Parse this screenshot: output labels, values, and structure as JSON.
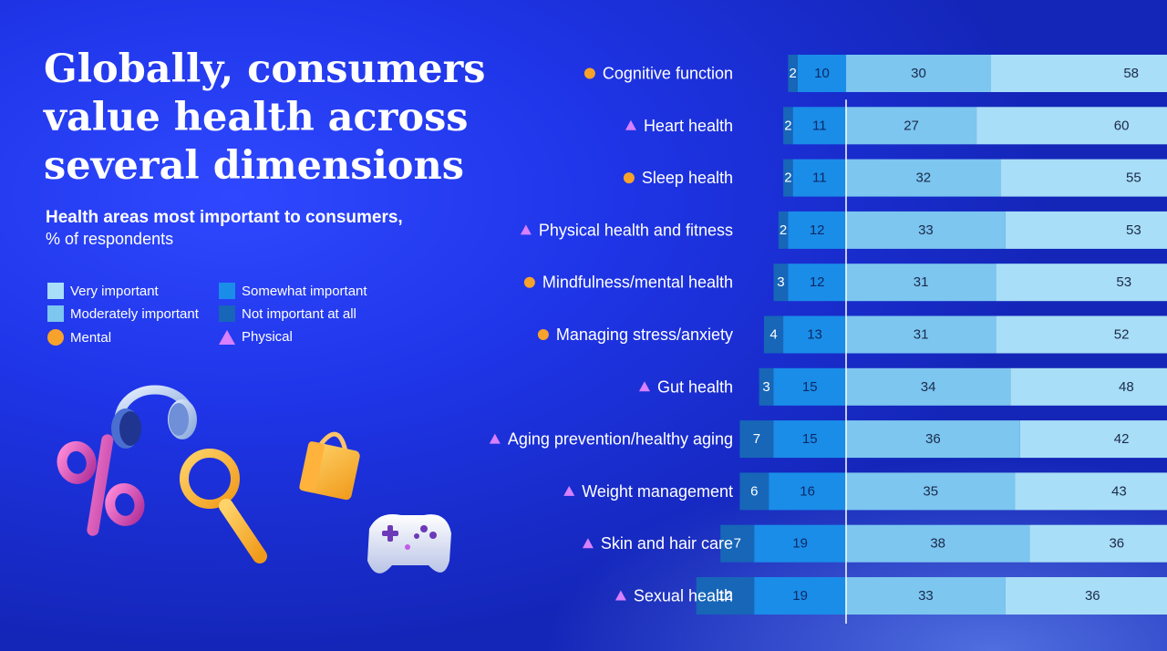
{
  "slide": {
    "title": "Globally, consumers value health across several dimensions",
    "subtitle": "Health areas most important to consumers,",
    "subtitle_unit": "% of respondents"
  },
  "legend": {
    "very": "Very important",
    "somewhat": "Somewhat important",
    "moderately": "Moderately important",
    "not_at_all": "Not important at all",
    "mental": "Mental",
    "physical": "Physical"
  },
  "colors": {
    "not_at_all": "#1766b8",
    "somewhat": "#1a8de8",
    "moderately": "#7cc6f0",
    "very": "#a8def7",
    "mental_marker": "#f7a22b",
    "physical_marker": "#d880ff"
  },
  "chart_data": {
    "type": "bar",
    "orientation": "horizontal-stacked-diverging",
    "title": "Health areas most important to consumers,",
    "unit": "% of respondents",
    "segments": [
      "Not important at all",
      "Somewhat important",
      "Moderately important",
      "Very important"
    ],
    "categories": [
      "Cognitive function",
      "Heart health",
      "Sleep health",
      "Physical health and fitness",
      "Mindfulness/mental health",
      "Managing stress/anxiety",
      "Gut health",
      "Aging prevention/healthy aging",
      "Weight management",
      "Skin and hair care",
      "Sexual health"
    ],
    "category_type": [
      "mental",
      "physical",
      "mental",
      "physical",
      "mental",
      "mental",
      "physical",
      "physical",
      "physical",
      "physical",
      "physical"
    ],
    "series": [
      {
        "name": "Not important at all",
        "values": [
          2,
          2,
          2,
          2,
          3,
          4,
          3,
          7,
          6,
          7,
          12
        ]
      },
      {
        "name": "Somewhat important",
        "values": [
          10,
          11,
          11,
          12,
          12,
          13,
          15,
          15,
          16,
          19,
          19
        ]
      },
      {
        "name": "Moderately important",
        "values": [
          30,
          27,
          32,
          33,
          31,
          31,
          34,
          36,
          35,
          38,
          33
        ]
      },
      {
        "name": "Very important",
        "values": [
          58,
          60,
          55,
          53,
          53,
          52,
          48,
          42,
          43,
          36,
          36
        ]
      }
    ],
    "legend_position": "left"
  }
}
